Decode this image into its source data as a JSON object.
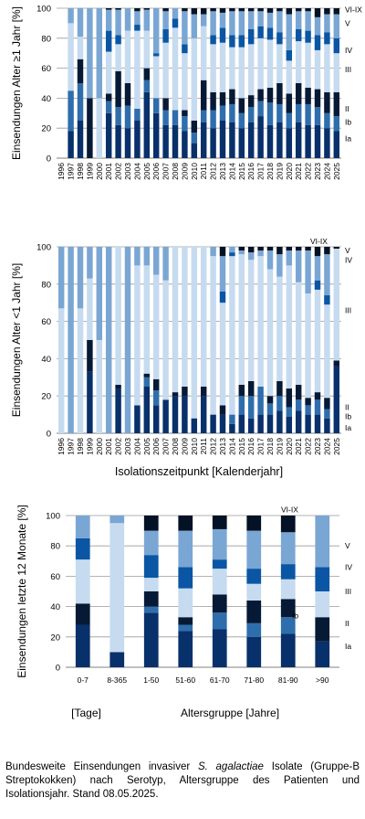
{
  "colors": {
    "Ia": "#08306b",
    "Ib": "#2f6ead",
    "II": "#061a36",
    "III": "#c6dbef",
    "IV": "#0a56a4",
    "V": "#7aa6d4",
    "VI-IX": "#041225",
    "gridline": "#9a9a9a"
  },
  "chart_data": [
    {
      "type": "bar",
      "stacked": true,
      "ylabel": "Einsendungen Alter ≥1 Jahr [%]",
      "ylim": [
        0,
        100
      ],
      "yticks": [
        0,
        20,
        40,
        60,
        80,
        100
      ],
      "grid": true,
      "categories": [
        "1996",
        "1997",
        "1998",
        "1999",
        "2000",
        "2001",
        "2002",
        "2003",
        "2004",
        "2005",
        "2006",
        "2007",
        "2008",
        "2009",
        "2010",
        "2011",
        "2012",
        "2013",
        "2014",
        "2015",
        "2016",
        "2017",
        "2018",
        "2019",
        "2020",
        "2021",
        "2022",
        "2023",
        "2024",
        "2025"
      ],
      "series_labels": [
        "VI-IX",
        "V",
        "IV",
        "III",
        "II",
        "Ib",
        "Ia"
      ],
      "series": [
        {
          "name": "Ia",
          "values": [
            0,
            18,
            25,
            0,
            0,
            30,
            22,
            20,
            25,
            44,
            30,
            22,
            22,
            18,
            10,
            24,
            20,
            25,
            24,
            20,
            24,
            28,
            22,
            24,
            20,
            24,
            22,
            22,
            20,
            18
          ]
        },
        {
          "name": "Ib",
          "values": [
            0,
            27,
            25,
            0,
            0,
            8,
            12,
            15,
            8,
            8,
            10,
            10,
            10,
            10,
            7,
            8,
            12,
            10,
            12,
            10,
            10,
            10,
            15,
            12,
            10,
            12,
            14,
            12,
            10,
            10
          ]
        },
        {
          "name": "II",
          "values": [
            0,
            0,
            16,
            40,
            0,
            5,
            24,
            15,
            0,
            8,
            0,
            8,
            0,
            4,
            8,
            20,
            12,
            9,
            10,
            10,
            8,
            8,
            10,
            14,
            13,
            14,
            11,
            12,
            14,
            16
          ]
        },
        {
          "name": "III",
          "values": [
            0,
            45,
            15,
            0,
            40,
            28,
            18,
            35,
            52,
            25,
            28,
            37,
            55,
            38,
            55,
            36,
            32,
            33,
            28,
            34,
            34,
            34,
            32,
            26,
            22,
            28,
            30,
            26,
            32,
            26
          ]
        },
        {
          "name": "IV",
          "values": [
            0,
            0,
            0,
            0,
            0,
            14,
            6,
            0,
            4,
            0,
            2,
            9,
            6,
            6,
            0,
            0,
            6,
            10,
            8,
            8,
            10,
            8,
            8,
            8,
            7,
            8,
            8,
            10,
            8,
            10
          ]
        },
        {
          "name": "V",
          "values": [
            0,
            10,
            19,
            60,
            60,
            14,
            17,
            15,
            9,
            14,
            30,
            12,
            8,
            22,
            16,
            8,
            16,
            10,
            16,
            16,
            12,
            10,
            10,
            14,
            24,
            12,
            13,
            12,
            12,
            16
          ]
        },
        {
          "name": "VI-IX",
          "values": [
            0,
            0,
            0,
            0,
            0,
            1,
            1,
            0,
            2,
            1,
            0,
            2,
            0,
            2,
            4,
            4,
            2,
            3,
            2,
            2,
            2,
            2,
            3,
            2,
            4,
            2,
            2,
            6,
            4,
            4
          ]
        }
      ]
    },
    {
      "type": "bar",
      "stacked": true,
      "ylabel": "Einsendungen Alter <1 Jahr [%]",
      "xlabel": "Isolationszeitpunkt [Kalenderjahr]",
      "ylim": [
        0,
        100
      ],
      "yticks": [
        0,
        20,
        40,
        60,
        80,
        100
      ],
      "grid": true,
      "categories": [
        "1996",
        "1997",
        "1998",
        "1999",
        "2000",
        "2001",
        "2002",
        "2003",
        "2004",
        "2005",
        "2006",
        "2007",
        "2008",
        "2009",
        "2010",
        "2011",
        "2012",
        "2013",
        "2014",
        "2015",
        "2016",
        "2017",
        "2018",
        "2019",
        "2020",
        "2021",
        "2022",
        "2023",
        "2024",
        "2025"
      ],
      "series_labels": [
        "VI-IX",
        "V",
        "IV",
        "III",
        "II",
        "Ib",
        "Ia"
      ],
      "series": [
        {
          "name": "Ia",
          "values": [
            0,
            0,
            0,
            33,
            0,
            0,
            24,
            0,
            15,
            25,
            15,
            18,
            20,
            20,
            8,
            20,
            10,
            10,
            5,
            10,
            8,
            10,
            10,
            12,
            9,
            12,
            10,
            10,
            8,
            36
          ]
        },
        {
          "name": "Ib",
          "values": [
            0,
            0,
            0,
            0,
            0,
            0,
            0,
            0,
            0,
            5,
            8,
            0,
            0,
            0,
            0,
            0,
            0,
            0,
            5,
            10,
            12,
            15,
            6,
            8,
            5,
            6,
            5,
            8,
            5,
            0
          ]
        },
        {
          "name": "II",
          "values": [
            0,
            0,
            0,
            17,
            0,
            0,
            2,
            0,
            0,
            2,
            6,
            0,
            2,
            5,
            0,
            5,
            0,
            5,
            0,
            6,
            8,
            0,
            4,
            8,
            10,
            8,
            4,
            4,
            6,
            3
          ]
        },
        {
          "name": "III",
          "values": [
            67,
            0,
            67,
            33,
            50,
            0,
            74,
            0,
            75,
            58,
            56,
            64,
            78,
            75,
            92,
            75,
            85,
            55,
            85,
            70,
            65,
            70,
            68,
            56,
            66,
            55,
            56,
            55,
            50,
            60
          ]
        },
        {
          "name": "IV",
          "values": [
            0,
            0,
            0,
            0,
            0,
            0,
            0,
            0,
            0,
            0,
            0,
            0,
            0,
            0,
            0,
            0,
            0,
            6,
            2,
            0,
            0,
            0,
            0,
            0,
            0,
            0,
            0,
            5,
            5,
            0
          ]
        },
        {
          "name": "V",
          "values": [
            33,
            100,
            33,
            17,
            50,
            100,
            0,
            100,
            10,
            10,
            15,
            18,
            0,
            0,
            0,
            0,
            5,
            19,
            3,
            2,
            4,
            3,
            10,
            12,
            8,
            17,
            23,
            13,
            22,
            0
          ]
        },
        {
          "name": "VI-IX",
          "values": [
            0,
            0,
            0,
            0,
            0,
            0,
            0,
            0,
            0,
            0,
            0,
            0,
            0,
            0,
            0,
            0,
            0,
            5,
            0,
            2,
            3,
            2,
            2,
            4,
            2,
            2,
            2,
            5,
            4,
            1
          ]
        }
      ]
    },
    {
      "type": "bar",
      "stacked": true,
      "ylabel": "Einsendungen letzte 12 Monate [%]",
      "ylim": [
        0,
        100
      ],
      "yticks": [
        0,
        20,
        40,
        60,
        80,
        100
      ],
      "grid": true,
      "categories": [
        "0-7",
        "8-365",
        "1-50",
        "51-60",
        "61-70",
        "71-80",
        "81-90",
        ">90"
      ],
      "series_labels": [
        "VI-IX",
        "V",
        "IV",
        "III",
        "II",
        "Ib",
        "Ia"
      ],
      "series": [
        {
          "name": "Ia",
          "values": [
            28,
            10,
            36,
            24,
            25,
            20,
            22,
            17
          ]
        },
        {
          "name": "Ib",
          "values": [
            0,
            0,
            4,
            4,
            11,
            9,
            11,
            0
          ]
        },
        {
          "name": "II",
          "values": [
            14,
            0,
            10,
            5,
            12,
            15,
            12,
            16
          ]
        },
        {
          "name": "III",
          "values": [
            29,
            85,
            9,
            19,
            17,
            11,
            13,
            17
          ]
        },
        {
          "name": "IV",
          "values": [
            14,
            0,
            15,
            14,
            6,
            10,
            10,
            16
          ]
        },
        {
          "name": "V",
          "values": [
            15,
            5,
            16,
            24,
            20,
            25,
            21,
            34
          ]
        },
        {
          "name": "VI-IX",
          "values": [
            0,
            0,
            10,
            10,
            9,
            10,
            11,
            0
          ]
        }
      ],
      "group_labels": [
        "[Tage]",
        "Altersgruppe [Jahre]"
      ]
    }
  ],
  "caption": {
    "part1": "Bundesweite Einsendungen invasiver ",
    "species": "S. agalactiae",
    "part2": " Isolate (Gruppe-B Streptokokken) nach Serotyp, Altersgruppe des Patienten und Isolationsjahr. Stand 08.05.2025."
  }
}
